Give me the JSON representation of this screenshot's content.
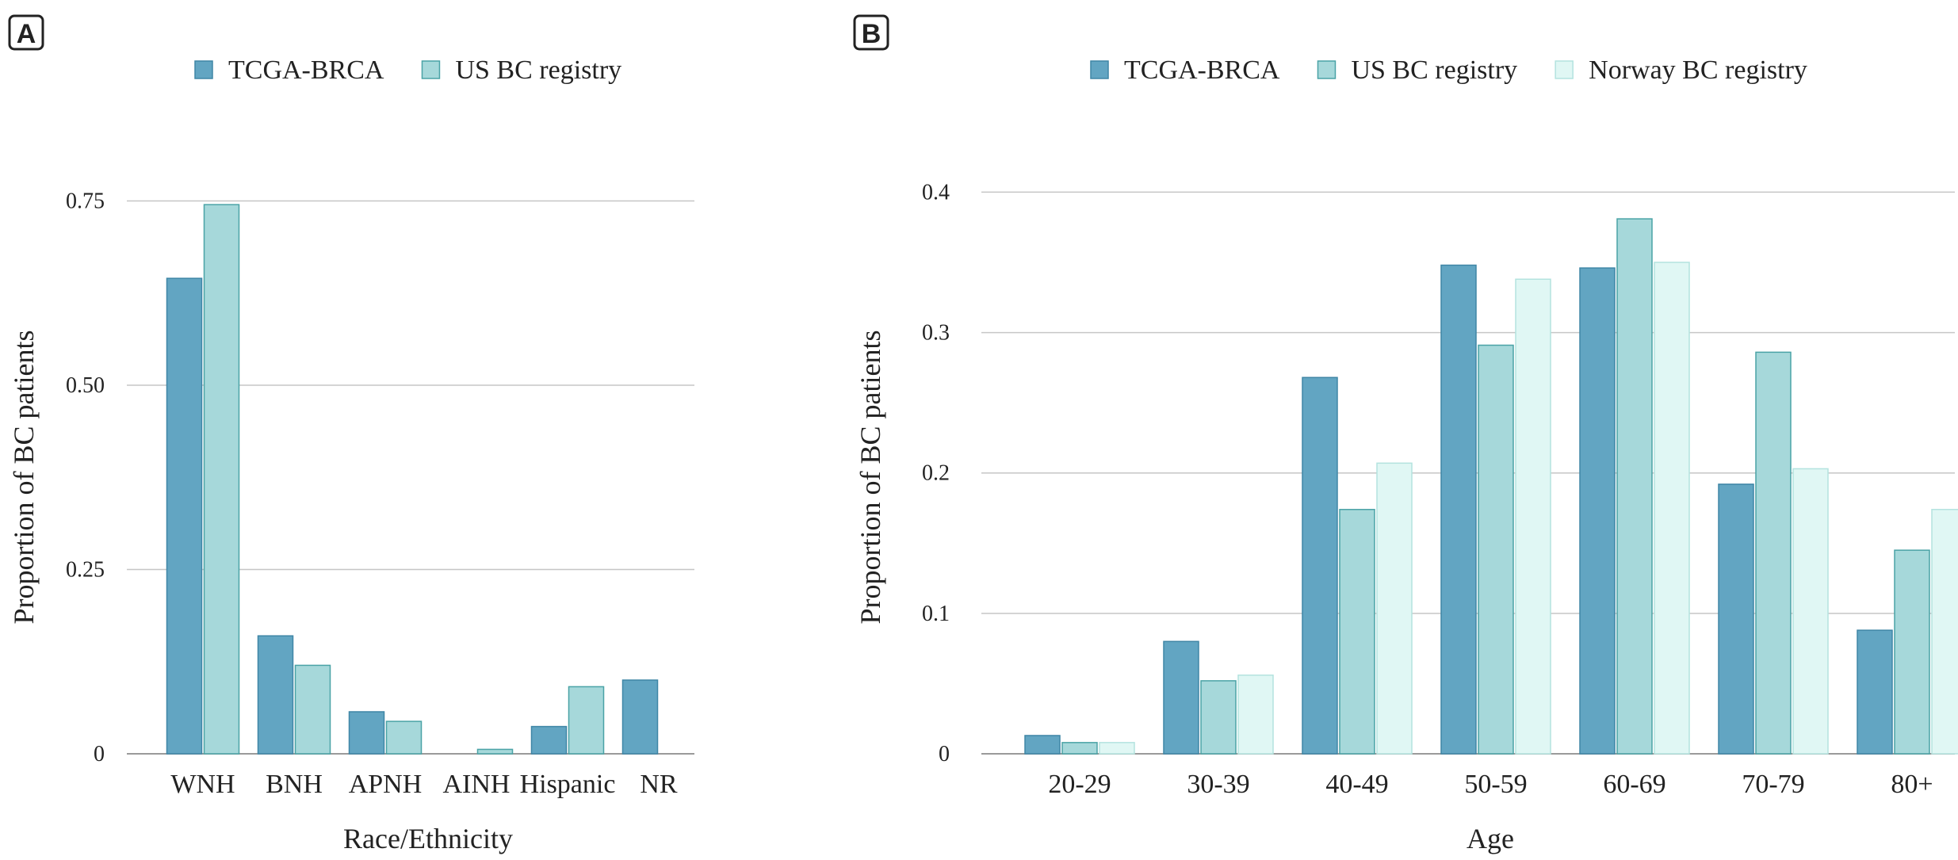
{
  "chart_data": [
    {
      "panel_label": "A",
      "type": "bar",
      "title": "",
      "xlabel": "Race/Ethnicity",
      "ylabel": "Proportion of BC patients",
      "categories": [
        "WNH",
        "BNH",
        "APNH",
        "AINH",
        "Hispanic",
        "NR"
      ],
      "series": [
        {
          "name": "TCGA-BRCA",
          "color": "#62a5c2",
          "stroke": "#3f86a6",
          "values": [
            0.645,
            0.16,
            0.057,
            0.0,
            0.037,
            0.1
          ]
        },
        {
          "name": "US BC registry",
          "color": "#a6d8da",
          "stroke": "#4aa3a6",
          "values": [
            0.745,
            0.12,
            0.044,
            0.006,
            0.091,
            null
          ]
        }
      ],
      "ylim": [
        0,
        0.8
      ],
      "yticks": [
        0,
        0.25,
        0.5,
        0.75
      ],
      "ytick_labels": [
        "0",
        "0.25",
        "0.50",
        "0.75"
      ],
      "grid": true,
      "legend_position": "top"
    },
    {
      "panel_label": "B",
      "type": "bar",
      "title": "",
      "xlabel": "Age",
      "ylabel": "Proportion of BC patients",
      "categories": [
        "20-29",
        "30-39",
        "40-49",
        "50-59",
        "60-69",
        "70-79",
        "80+"
      ],
      "series": [
        {
          "name": "TCGA-BRCA",
          "color": "#62a5c2",
          "stroke": "#3f86a6",
          "values": [
            0.013,
            0.08,
            0.268,
            0.348,
            0.346,
            0.192,
            0.088
          ]
        },
        {
          "name": "US BC registry",
          "color": "#a6d8da",
          "stroke": "#4aa3a6",
          "values": [
            0.008,
            0.052,
            0.174,
            0.291,
            0.381,
            0.286,
            0.145
          ]
        },
        {
          "name": "Norway BC registry",
          "color": "#e0f7f4",
          "stroke": "#b4e3df",
          "values": [
            0.008,
            0.056,
            0.207,
            0.338,
            0.35,
            0.203,
            0.174
          ]
        }
      ],
      "ylim": [
        0,
        0.42
      ],
      "yticks": [
        0,
        0.1,
        0.2,
        0.3,
        0.4
      ],
      "ytick_labels": [
        "0",
        "0.1",
        "0.2",
        "0.3",
        "0.4"
      ],
      "grid": true,
      "legend_position": "top"
    }
  ]
}
